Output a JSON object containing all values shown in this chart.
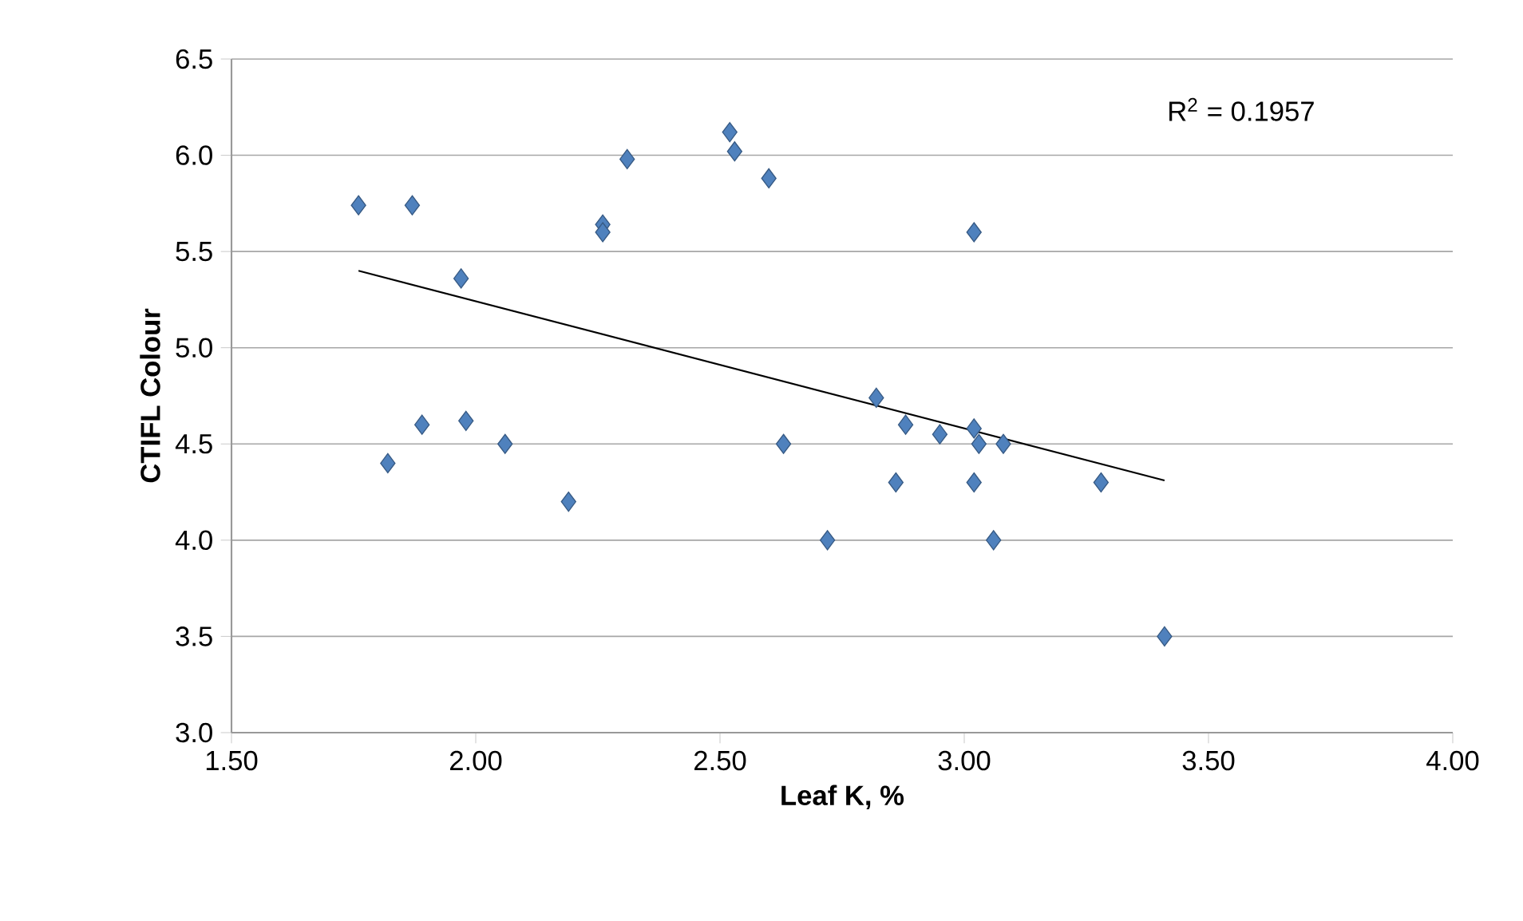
{
  "chart_data": {
    "type": "scatter",
    "xlabel": "Leaf K, %",
    "ylabel": "CTIFL Colour",
    "xlim": [
      1.5,
      4.0
    ],
    "ylim": [
      3.0,
      6.5
    ],
    "xticks": [
      {
        "value": 1.5,
        "label": "1.50"
      },
      {
        "value": 2.0,
        "label": "2.00"
      },
      {
        "value": 2.5,
        "label": "2.50"
      },
      {
        "value": 3.0,
        "label": "3.00"
      },
      {
        "value": 3.5,
        "label": "3.50"
      },
      {
        "value": 4.0,
        "label": "4.00"
      }
    ],
    "yticks": [
      {
        "value": 3.0,
        "label": "3.0"
      },
      {
        "value": 3.5,
        "label": "3.5"
      },
      {
        "value": 4.0,
        "label": "4.0"
      },
      {
        "value": 4.5,
        "label": "4.5"
      },
      {
        "value": 5.0,
        "label": "5.0"
      },
      {
        "value": 5.5,
        "label": "5.5"
      },
      {
        "value": 6.0,
        "label": "6.0"
      },
      {
        "value": 6.5,
        "label": "6.5"
      }
    ],
    "grid": "y",
    "marker": "diamond",
    "annotations": [
      "R$^{2}$ = 0.1957"
    ],
    "series": [
      {
        "color": "#4f81bd",
        "x": [
          1.76,
          1.87,
          1.97,
          1.82,
          1.89,
          1.98,
          2.06,
          2.19,
          2.26,
          2.26,
          2.31,
          2.52,
          2.53,
          2.6,
          2.63,
          2.72,
          2.82,
          2.86,
          2.88,
          2.95,
          3.02,
          3.02,
          3.02,
          3.03,
          3.06,
          3.08,
          3.28,
          3.41
        ],
        "values": [
          5.74,
          5.74,
          5.36,
          4.4,
          4.6,
          4.62,
          4.5,
          4.2,
          5.64,
          5.6,
          5.98,
          6.12,
          6.02,
          5.88,
          4.5,
          4.0,
          4.74,
          4.3,
          4.6,
          4.55,
          5.6,
          4.58,
          4.3,
          4.5,
          4.0,
          4.5,
          4.3,
          3.5
        ]
      },
      {
        "type": "line",
        "color": "#000000",
        "marker": "none",
        "x": [
          1.76,
          3.41
        ],
        "values": [
          5.4,
          4.31
        ]
      }
    ]
  }
}
